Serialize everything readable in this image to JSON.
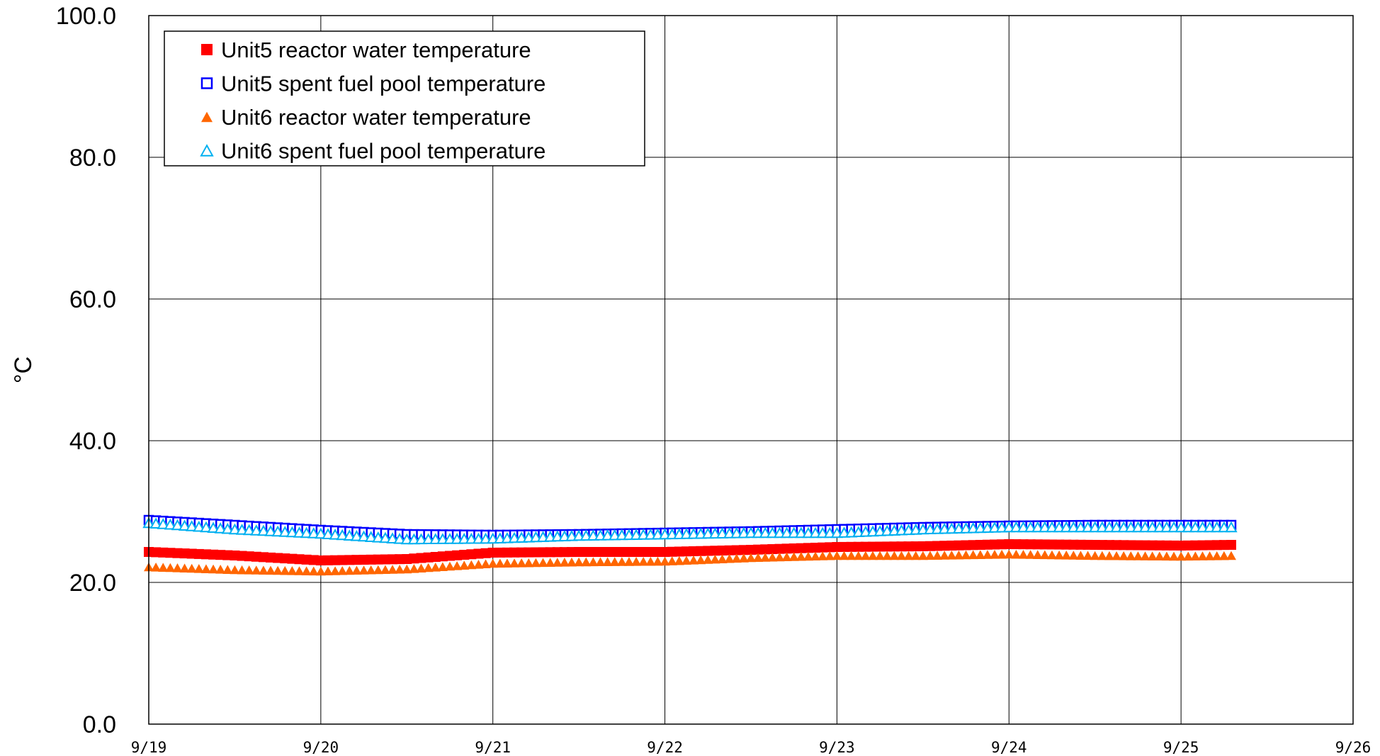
{
  "chart_data": {
    "type": "scatter",
    "title": "",
    "xlabel": "",
    "ylabel": "°C",
    "x_range": [
      "9/19",
      "9/26"
    ],
    "x_ticks": [
      "9/19",
      "9/20",
      "9/21",
      "9/22",
      "9/23",
      "9/24",
      "9/25",
      "9/26"
    ],
    "ylim": [
      0,
      100
    ],
    "y_ticks": [
      "0.0",
      "20.0",
      "40.0",
      "60.0",
      "80.0",
      "100.0"
    ],
    "grid": true,
    "legend_position": "top-left",
    "series": [
      {
        "name": "Unit5 reactor water temperature",
        "marker": "filled-square",
        "color": "#ff0000",
        "points": [
          {
            "x": "9/19 00:00",
            "y": 24.3
          },
          {
            "x": "9/19 12:00",
            "y": 23.8
          },
          {
            "x": "9/20 00:00",
            "y": 23.1
          },
          {
            "x": "9/20 12:00",
            "y": 23.3
          },
          {
            "x": "9/21 00:00",
            "y": 24.2
          },
          {
            "x": "9/21 12:00",
            "y": 24.3
          },
          {
            "x": "9/22 00:00",
            "y": 24.3
          },
          {
            "x": "9/22 12:00",
            "y": 24.6
          },
          {
            "x": "9/23 00:00",
            "y": 25.0
          },
          {
            "x": "9/23 12:00",
            "y": 25.1
          },
          {
            "x": "9/24 00:00",
            "y": 25.4
          },
          {
            "x": "9/24 12:00",
            "y": 25.3
          },
          {
            "x": "9/25 00:00",
            "y": 25.2
          },
          {
            "x": "9/25 07:00",
            "y": 25.3
          }
        ]
      },
      {
        "name": "Unit5 spent fuel pool temperature",
        "marker": "hollow-square",
        "color": "#0000ff",
        "points": [
          {
            "x": "9/19 00:00",
            "y": 28.8
          },
          {
            "x": "9/19 12:00",
            "y": 28.1
          },
          {
            "x": "9/20 00:00",
            "y": 27.4
          },
          {
            "x": "9/20 12:00",
            "y": 26.8
          },
          {
            "x": "9/21 00:00",
            "y": 26.7
          },
          {
            "x": "9/21 12:00",
            "y": 26.8
          },
          {
            "x": "9/22 00:00",
            "y": 27.0
          },
          {
            "x": "9/22 12:00",
            "y": 27.2
          },
          {
            "x": "9/23 00:00",
            "y": 27.5
          },
          {
            "x": "9/23 12:00",
            "y": 27.8
          },
          {
            "x": "9/24 00:00",
            "y": 28.0
          },
          {
            "x": "9/24 12:00",
            "y": 28.1
          },
          {
            "x": "9/25 00:00",
            "y": 28.1
          },
          {
            "x": "9/25 07:00",
            "y": 28.1
          }
        ]
      },
      {
        "name": "Unit6 reactor water temperature",
        "marker": "filled-triangle",
        "color": "#ff6600",
        "points": [
          {
            "x": "9/19 00:00",
            "y": 22.2
          },
          {
            "x": "9/19 12:00",
            "y": 21.8
          },
          {
            "x": "9/20 00:00",
            "y": 21.6
          },
          {
            "x": "9/20 12:00",
            "y": 21.9
          },
          {
            "x": "9/21 00:00",
            "y": 22.7
          },
          {
            "x": "9/21 12:00",
            "y": 22.9
          },
          {
            "x": "9/22 00:00",
            "y": 23.0
          },
          {
            "x": "9/22 12:00",
            "y": 23.5
          },
          {
            "x": "9/23 00:00",
            "y": 23.8
          },
          {
            "x": "9/23 12:00",
            "y": 23.8
          },
          {
            "x": "9/24 00:00",
            "y": 24.0
          },
          {
            "x": "9/24 12:00",
            "y": 23.8
          },
          {
            "x": "9/25 00:00",
            "y": 23.7
          },
          {
            "x": "9/25 07:00",
            "y": 23.8
          }
        ]
      },
      {
        "name": "Unit6 spent fuel pool temperature",
        "marker": "hollow-triangle",
        "color": "#00b0f0",
        "points": [
          {
            "x": "9/19 00:00",
            "y": 28.4
          },
          {
            "x": "9/19 12:00",
            "y": 27.5
          },
          {
            "x": "9/20 00:00",
            "y": 26.9
          },
          {
            "x": "9/20 12:00",
            "y": 26.1
          },
          {
            "x": "9/21 00:00",
            "y": 26.2
          },
          {
            "x": "9/21 12:00",
            "y": 26.6
          },
          {
            "x": "9/22 00:00",
            "y": 26.8
          },
          {
            "x": "9/22 12:00",
            "y": 27.0
          },
          {
            "x": "9/23 00:00",
            "y": 27.0
          },
          {
            "x": "9/23 12:00",
            "y": 27.5
          },
          {
            "x": "9/24 00:00",
            "y": 27.8
          },
          {
            "x": "9/24 12:00",
            "y": 27.8
          },
          {
            "x": "9/25 00:00",
            "y": 27.8
          },
          {
            "x": "9/25 07:00",
            "y": 27.8
          }
        ]
      }
    ]
  }
}
